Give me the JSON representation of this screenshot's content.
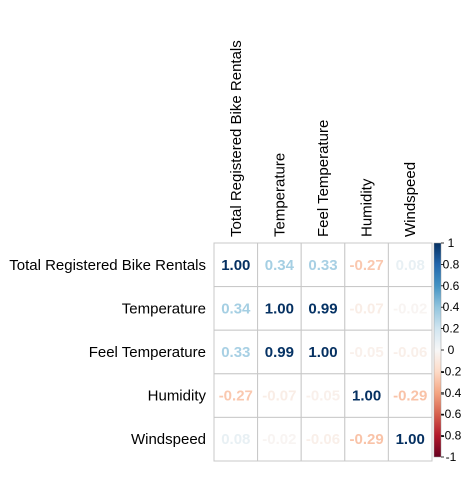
{
  "chart_data": {
    "type": "heatmap",
    "title": "",
    "variables": [
      "Total Registered Bike Rentals",
      "Temperature",
      "Feel Temperature",
      "Humidity",
      "Windspeed"
    ],
    "matrix": [
      [
        1.0,
        0.34,
        0.33,
        -0.27,
        0.08
      ],
      [
        0.34,
        1.0,
        0.99,
        -0.07,
        -0.02
      ],
      [
        0.33,
        0.99,
        1.0,
        -0.05,
        -0.06
      ],
      [
        -0.27,
        -0.07,
        -0.05,
        1.0,
        -0.29
      ],
      [
        0.08,
        -0.02,
        -0.06,
        -0.29,
        1.0
      ]
    ],
    "labels": [
      [
        "1.00",
        "0.34",
        "0.33",
        "-0.27",
        "0.08"
      ],
      [
        "0.34",
        "1.00",
        "0.99",
        "-0.07",
        "-0.02"
      ],
      [
        "0.33",
        "0.99",
        "1.00",
        "-0.05",
        "-0.06"
      ],
      [
        "-0.27",
        "-0.07",
        "-0.05",
        "1.00",
        "-0.29"
      ],
      [
        "0.08",
        "-0.02",
        "-0.06",
        "-0.29",
        "1.00"
      ]
    ],
    "colorbar": {
      "range": [
        -1,
        1
      ],
      "ticks": [
        "1",
        "0.8",
        "0.6",
        "0.4",
        "0.2",
        "0",
        "-0.2",
        "-0.4",
        "-0.6",
        "-0.8",
        "-1"
      ],
      "low_color": "#67001F",
      "mid_color": "#F7F7F7",
      "high_color": "#053061"
    },
    "grid": true,
    "legend_position": "right"
  }
}
